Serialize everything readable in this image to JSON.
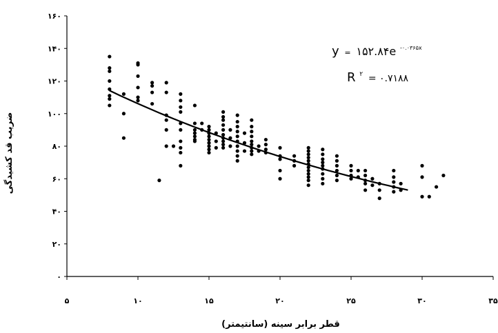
{
  "chart_data": {
    "type": "scatter",
    "title": "",
    "xlabel": "قطر برابر سینه (سانتیمتر)",
    "ylabel": "ضریب قد کشیدگی",
    "xlim": [
      5,
      35
    ],
    "ylim": [
      0,
      160
    ],
    "x_ticks": [
      5,
      10,
      15,
      20,
      25,
      30,
      35
    ],
    "y_ticks": [
      0,
      20,
      40,
      60,
      80,
      100,
      120,
      140,
      160
    ],
    "x_tick_labels": [
      "۵",
      "۱۰",
      "۱۵",
      "۲۰",
      "۲۵",
      "۳۰",
      "۳۵"
    ],
    "y_tick_labels": [
      "۰",
      "۲۰",
      "۴۰",
      "۶۰",
      "۸۰",
      "۱۰۰",
      "۱۲۰",
      "۱۴۰",
      "۱۶۰"
    ],
    "grid": false,
    "annotations": {
      "equation_prefix": "y",
      "equation_eq": "=",
      "equation_coef": "۱۵۲.۸۴e",
      "equation_exp": "-۰.۰۳۶۵x",
      "r2_label": "R",
      "r2_sup": "۲",
      "r2_value": "= ۰.۷۱۸۸"
    },
    "trendline": {
      "type": "exponential",
      "a": 152.84,
      "b": -0.0365,
      "x_range": [
        8,
        29
      ]
    },
    "points": [
      [
        8,
        135
      ],
      [
        8,
        128
      ],
      [
        8,
        126
      ],
      [
        8,
        120
      ],
      [
        8,
        115
      ],
      [
        8,
        111
      ],
      [
        8,
        109
      ],
      [
        8,
        105
      ],
      [
        9,
        112
      ],
      [
        9,
        100
      ],
      [
        9,
        85
      ],
      [
        10,
        131
      ],
      [
        10,
        130
      ],
      [
        10,
        123
      ],
      [
        10,
        116
      ],
      [
        10,
        110
      ],
      [
        10,
        108
      ],
      [
        11,
        119
      ],
      [
        11,
        117
      ],
      [
        11,
        113
      ],
      [
        11,
        106
      ],
      [
        11.5,
        59
      ],
      [
        12,
        119
      ],
      [
        12,
        113
      ],
      [
        12,
        99
      ],
      [
        12,
        96
      ],
      [
        12,
        90
      ],
      [
        12,
        80
      ],
      [
        12.5,
        80
      ],
      [
        13,
        112
      ],
      [
        13,
        108
      ],
      [
        13,
        104
      ],
      [
        13,
        101
      ],
      [
        13,
        94
      ],
      [
        13,
        90
      ],
      [
        13,
        83
      ],
      [
        13,
        79
      ],
      [
        13,
        76
      ],
      [
        13,
        68
      ],
      [
        14,
        105
      ],
      [
        14,
        94
      ],
      [
        14,
        90
      ],
      [
        14,
        88
      ],
      [
        14,
        86
      ],
      [
        14,
        84
      ],
      [
        14,
        83
      ],
      [
        14.5,
        94
      ],
      [
        14.5,
        90
      ],
      [
        15,
        92
      ],
      [
        15,
        90
      ],
      [
        15,
        88
      ],
      [
        15,
        86
      ],
      [
        15,
        84
      ],
      [
        15,
        82
      ],
      [
        15,
        80
      ],
      [
        15,
        78
      ],
      [
        15,
        76
      ],
      [
        15.5,
        88
      ],
      [
        15.5,
        83
      ],
      [
        15.5,
        79
      ],
      [
        16,
        101
      ],
      [
        16,
        98
      ],
      [
        16,
        96
      ],
      [
        16,
        93
      ],
      [
        16,
        90
      ],
      [
        16,
        87
      ],
      [
        16,
        85
      ],
      [
        16,
        83
      ],
      [
        16,
        81
      ],
      [
        16,
        79
      ],
      [
        16.5,
        90
      ],
      [
        16.5,
        85
      ],
      [
        16.5,
        80
      ],
      [
        17,
        99
      ],
      [
        17,
        95
      ],
      [
        17,
        92
      ],
      [
        17,
        89
      ],
      [
        17,
        86
      ],
      [
        17,
        83
      ],
      [
        17,
        80
      ],
      [
        17,
        77
      ],
      [
        17,
        74
      ],
      [
        17,
        71
      ],
      [
        17.5,
        88
      ],
      [
        17.5,
        82
      ],
      [
        17.5,
        77
      ],
      [
        18,
        96
      ],
      [
        18,
        92
      ],
      [
        18,
        89
      ],
      [
        18,
        86
      ],
      [
        18,
        83
      ],
      [
        18,
        81
      ],
      [
        18,
        79
      ],
      [
        18,
        77
      ],
      [
        18,
        75
      ],
      [
        18.5,
        80
      ],
      [
        18.5,
        77
      ],
      [
        19,
        84
      ],
      [
        19,
        81
      ],
      [
        19,
        78
      ],
      [
        19,
        76
      ],
      [
        20,
        79
      ],
      [
        20,
        74
      ],
      [
        20,
        72
      ],
      [
        20,
        65
      ],
      [
        20,
        60
      ],
      [
        21,
        74
      ],
      [
        21,
        71
      ],
      [
        21,
        68
      ],
      [
        22,
        79
      ],
      [
        22,
        77
      ],
      [
        22,
        75
      ],
      [
        22,
        73
      ],
      [
        22,
        71
      ],
      [
        22,
        69
      ],
      [
        22,
        67
      ],
      [
        22,
        65
      ],
      [
        22,
        63
      ],
      [
        22,
        61
      ],
      [
        22,
        59
      ],
      [
        22,
        56
      ],
      [
        23,
        78
      ],
      [
        23,
        75
      ],
      [
        23,
        72
      ],
      [
        23,
        70
      ],
      [
        23,
        68
      ],
      [
        23,
        66
      ],
      [
        23,
        63
      ],
      [
        23,
        60
      ],
      [
        23,
        57
      ],
      [
        24,
        74
      ],
      [
        24,
        71
      ],
      [
        24,
        68
      ],
      [
        24,
        65
      ],
      [
        24,
        62
      ],
      [
        24,
        59
      ],
      [
        25,
        68
      ],
      [
        25,
        65
      ],
      [
        25,
        62
      ],
      [
        25,
        60
      ],
      [
        25.5,
        65
      ],
      [
        25.5,
        61
      ],
      [
        26,
        65
      ],
      [
        26,
        62
      ],
      [
        26,
        59
      ],
      [
        26,
        57
      ],
      [
        26,
        53
      ],
      [
        26.5,
        60
      ],
      [
        26.5,
        56
      ],
      [
        27,
        57
      ],
      [
        27,
        53
      ],
      [
        27,
        48
      ],
      [
        28,
        65
      ],
      [
        28,
        61
      ],
      [
        28,
        58
      ],
      [
        28,
        55
      ],
      [
        28,
        52
      ],
      [
        28.5,
        57
      ],
      [
        28.5,
        53
      ],
      [
        30,
        68
      ],
      [
        30,
        61
      ],
      [
        30,
        49
      ],
      [
        30.5,
        49
      ],
      [
        31,
        55
      ],
      [
        31.5,
        62
      ]
    ]
  }
}
